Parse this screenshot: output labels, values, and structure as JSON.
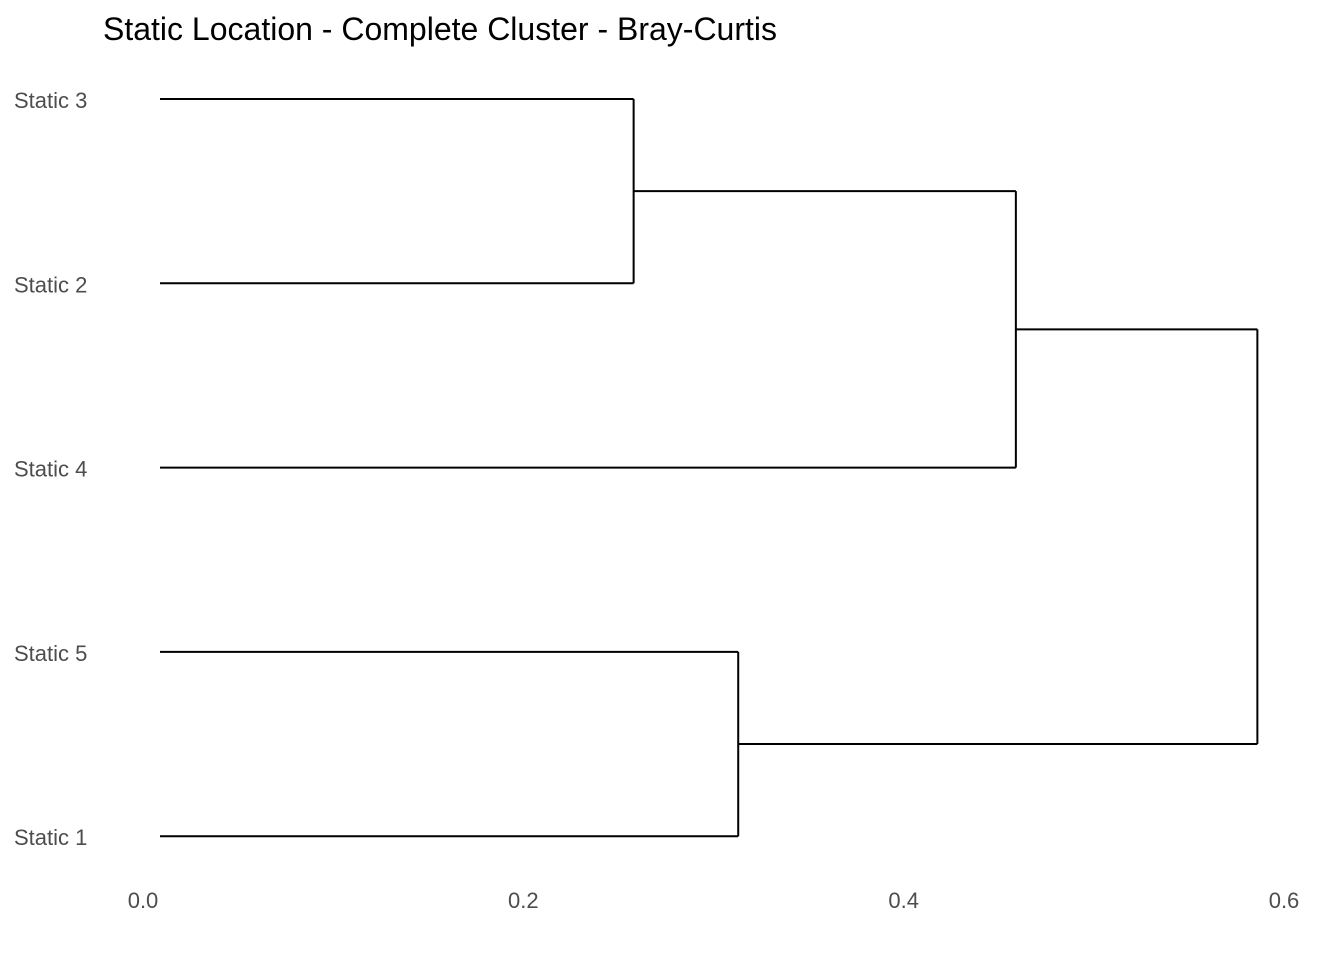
{
  "chart_data": {
    "type": "dendrogram",
    "title": "Static Location - Complete Cluster - Bray-Curtis",
    "orientation": "horizontal",
    "xlabel": "",
    "ylabel": "",
    "xlim": [
      0,
      0.6
    ],
    "x_ticks": [
      {
        "value": 0.0,
        "label": "0.0"
      },
      {
        "value": 0.2,
        "label": "0.2"
      },
      {
        "value": 0.4,
        "label": "0.4"
      },
      {
        "value": 0.6,
        "label": "0.6"
      }
    ],
    "grid": false,
    "leaves_top_to_bottom": [
      "Static 3",
      "Static 2",
      "Static 4",
      "Static 5",
      "Static 1"
    ],
    "merges": [
      {
        "children": [
          "Static 3",
          "Static 2"
        ],
        "height": 0.258
      },
      {
        "children": [
          "Static 5",
          "Static 1"
        ],
        "height": 0.313
      },
      {
        "children": [
          "Static 3 + Static 2",
          "Static 4"
        ],
        "height": 0.459
      },
      {
        "children": [
          "Static 3 + Static 2 + Static 4",
          "Static 5 + Static 1"
        ],
        "height": 0.586
      }
    ]
  }
}
